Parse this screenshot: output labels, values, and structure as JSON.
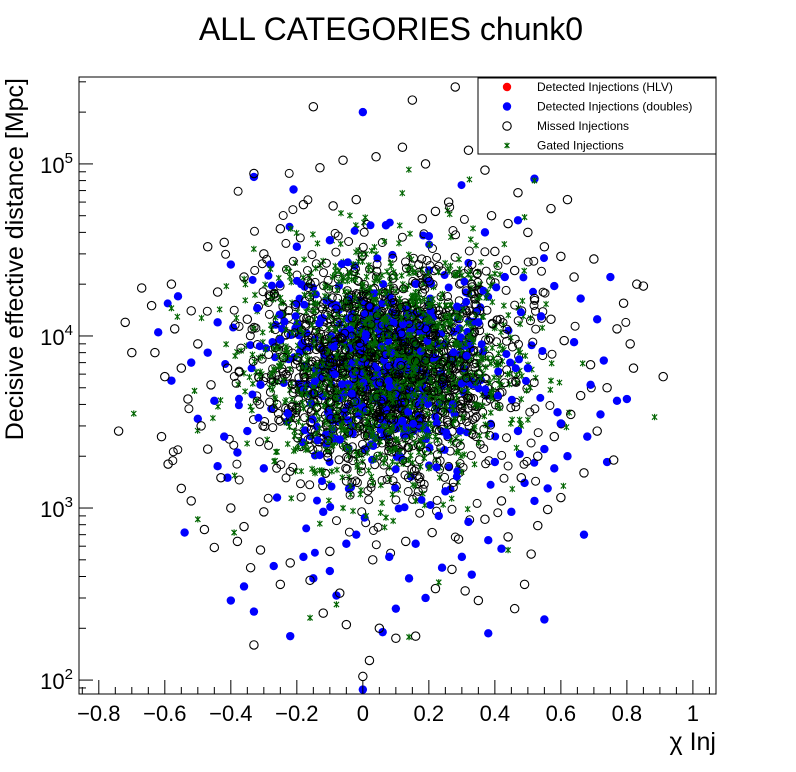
{
  "chart_data": {
    "type": "scatter",
    "title": "ALL CATEGORIES chunk0",
    "xlabel": "χ Inj",
    "ylabel": "Decisive effective distance [Mpc]",
    "xlim": [
      -0.86,
      1.07
    ],
    "ylim": [
      83,
      320000
    ],
    "yscale": "log",
    "grid": false,
    "legend_position": "top-right",
    "x_ticks": [
      -0.8,
      -0.6,
      -0.4,
      -0.2,
      0,
      0.2,
      0.4,
      0.6,
      0.8,
      1
    ],
    "x_tick_labels": [
      "−0.8",
      "−0.6",
      "−0.4",
      "−0.2",
      "0",
      "0.2",
      "0.4",
      "0.6",
      "0.8",
      "1"
    ],
    "y_ticks": [
      {
        "value": 100,
        "base": "10",
        "exp": "2"
      },
      {
        "value": 1000,
        "base": "10",
        "exp": "3"
      },
      {
        "value": 10000,
        "base": "10",
        "exp": "4"
      },
      {
        "value": 100000,
        "base": "10",
        "exp": "5"
      }
    ],
    "legend": [
      {
        "label": "Detected Injections (HLV)",
        "marker": "filled-circle",
        "color": "#ff0000"
      },
      {
        "label": "Detected Injections (doubles)",
        "marker": "filled-circle",
        "color": "#0000ff"
      },
      {
        "label": "Missed Injections",
        "marker": "open-circle",
        "color": "#000000"
      },
      {
        "label": "Gated Injections",
        "marker": "star",
        "color": "#006400"
      }
    ],
    "series": [
      {
        "name": "Detected Injections (doubles)",
        "color": "#0000ff",
        "marker": "filled-circle",
        "points": [
          [
            0.0,
            200000
          ],
          [
            -0.33,
            84000
          ],
          [
            -0.21,
            71000
          ],
          [
            0.52,
            82000
          ],
          [
            -0.56,
            17000
          ],
          [
            -0.47,
            8000
          ],
          [
            -0.52,
            7000
          ],
          [
            -0.58,
            5500
          ],
          [
            -0.45,
            4200
          ],
          [
            -0.5,
            3300
          ],
          [
            -0.42,
            2600
          ],
          [
            -0.38,
            2100
          ],
          [
            -0.44,
            1750
          ],
          [
            -0.41,
            1500
          ],
          [
            -0.54,
            720
          ],
          [
            -0.4,
            290
          ],
          [
            -0.36,
            350
          ],
          [
            -0.33,
            250
          ],
          [
            -0.22,
            180
          ],
          [
            -0.27,
            460
          ],
          [
            -0.18,
            520
          ],
          [
            -0.15,
            390
          ],
          [
            -0.1,
            430
          ],
          [
            -0.08,
            310
          ],
          [
            -0.05,
            620
          ],
          [
            0.0,
            88
          ],
          [
            0.06,
            190
          ],
          [
            0.1,
            260
          ],
          [
            0.14,
            390
          ],
          [
            0.19,
            300
          ],
          [
            0.24,
            450
          ],
          [
            0.3,
            520
          ],
          [
            0.33,
            410
          ],
          [
            0.38,
            650
          ],
          [
            0.42,
            580
          ],
          [
            0.45,
            950
          ],
          [
            0.52,
            1100
          ],
          [
            0.49,
            1400
          ],
          [
            0.55,
            2200
          ],
          [
            0.58,
            1700
          ],
          [
            0.62,
            2000
          ],
          [
            0.68,
            2600
          ],
          [
            0.72,
            3500
          ],
          [
            0.77,
            4200
          ],
          [
            0.69,
            5200
          ],
          [
            0.73,
            7200
          ],
          [
            0.64,
            9200
          ],
          [
            0.71,
            12500
          ],
          [
            0.75,
            22000
          ],
          [
            0.66,
            16500
          ],
          [
            0.6,
            3100
          ],
          [
            0.56,
            1300
          ],
          [
            0.47,
            2800
          ],
          [
            0.5,
            6500
          ],
          [
            0.54,
            13000
          ],
          [
            0.58,
            19500
          ],
          [
            0.43,
            22000
          ],
          [
            0.35,
            12000
          ],
          [
            0.23,
            900
          ],
          [
            0.16,
            620
          ],
          [
            0.08,
            520
          ],
          [
            -0.02,
            700
          ],
          [
            -0.12,
            950
          ],
          [
            -0.26,
            1150
          ],
          [
            -0.3,
            1700
          ],
          [
            -0.35,
            2800
          ],
          [
            -0.31,
            5200
          ],
          [
            -0.25,
            9500
          ],
          [
            -0.32,
            14500
          ],
          [
            -0.28,
            26000
          ],
          [
            0.25,
            1250
          ],
          [
            0.32,
            830
          ],
          [
            0.4,
            1850
          ],
          [
            0.12,
            3200
          ],
          [
            -0.07,
            2500
          ],
          [
            0.55,
            225
          ],
          [
            0.38,
            187
          ],
          [
            0.74,
            1850
          ],
          [
            0.59,
            3600
          ],
          [
            0.47,
            47000
          ],
          [
            0.37,
            40000
          ],
          [
            -0.2,
            33000
          ],
          [
            -0.1,
            36000
          ],
          [
            0.07,
            44000
          ],
          [
            0.2,
            38000
          ],
          [
            -0.44,
            12000
          ],
          [
            -0.62,
            10500
          ],
          [
            -0.4,
            26000
          ],
          [
            0.8,
            4300
          ],
          [
            0.67,
            700
          ]
        ]
      },
      {
        "name": "Missed Injections",
        "color": "#000000",
        "marker": "open-circle",
        "points": [
          [
            0.28,
            280000
          ],
          [
            -0.15,
            215000
          ],
          [
            0.15,
            235000
          ],
          [
            0.32,
            120000
          ],
          [
            0.04,
            110000
          ],
          [
            -0.06,
            105000
          ],
          [
            0.12,
            125000
          ],
          [
            0.19,
            100000
          ],
          [
            0.42,
            122000
          ],
          [
            0.37,
            92000
          ],
          [
            -0.13,
            95000
          ],
          [
            -0.33,
            88000
          ],
          [
            0.62,
            62000
          ],
          [
            0.57,
            55000
          ],
          [
            0.47,
            68000
          ],
          [
            -0.42,
            35000
          ],
          [
            -0.47,
            33000
          ],
          [
            -0.58,
            20000
          ],
          [
            -0.67,
            19000
          ],
          [
            -0.72,
            12000
          ],
          [
            -0.7,
            8000
          ],
          [
            -0.74,
            2800
          ],
          [
            -0.63,
            8000
          ],
          [
            -0.6,
            5800
          ],
          [
            -0.61,
            2600
          ],
          [
            -0.59,
            1800
          ],
          [
            -0.55,
            1300
          ],
          [
            -0.52,
            1100
          ],
          [
            -0.48,
            750
          ],
          [
            -0.45,
            590
          ],
          [
            -0.38,
            640
          ],
          [
            -0.33,
            160
          ],
          [
            -0.34,
            450
          ],
          [
            -0.25,
            360
          ],
          [
            -0.3,
            950
          ],
          [
            -0.12,
            245
          ],
          [
            -0.07,
            320
          ],
          [
            -0.05,
            210
          ],
          [
            0.0,
            105
          ],
          [
            0.02,
            130
          ],
          [
            0.05,
            200
          ],
          [
            0.1,
            175
          ],
          [
            0.16,
            180
          ],
          [
            0.22,
            340
          ],
          [
            0.27,
            440
          ],
          [
            0.31,
            330
          ],
          [
            0.35,
            290
          ],
          [
            0.44,
            680
          ],
          [
            0.49,
            360
          ],
          [
            0.51,
            540
          ],
          [
            0.46,
            260
          ],
          [
            0.56,
            980
          ],
          [
            0.53,
            790
          ],
          [
            0.6,
            1150
          ],
          [
            0.67,
            1600
          ],
          [
            0.76,
            1900
          ],
          [
            0.71,
            2800
          ],
          [
            0.74,
            5000
          ],
          [
            0.82,
            6500
          ],
          [
            0.81,
            9000
          ],
          [
            0.91,
            5800
          ],
          [
            0.85,
            19500
          ],
          [
            0.79,
            15500
          ],
          [
            0.83,
            20000
          ],
          [
            0.77,
            11000
          ],
          [
            0.7,
            28000
          ],
          [
            0.64,
            22000
          ],
          [
            0.55,
            33000
          ],
          [
            0.6,
            29000
          ],
          [
            0.5,
            40000
          ],
          [
            0.44,
            45000
          ],
          [
            0.39,
            50000
          ],
          [
            0.26,
            60000
          ],
          [
            0.22,
            53000
          ],
          [
            0.18,
            48000
          ],
          [
            -0.02,
            62000
          ],
          [
            -0.09,
            57000
          ],
          [
            -0.18,
            58000
          ],
          [
            -0.25,
            42000
          ],
          [
            -0.3,
            30000
          ],
          [
            -0.36,
            22000
          ],
          [
            -0.44,
            18000
          ],
          [
            -0.52,
            14000
          ],
          [
            -0.57,
            11000
          ],
          [
            -0.64,
            15000
          ],
          [
            -0.5,
            9000
          ],
          [
            -0.46,
            5200
          ],
          [
            -0.53,
            4300
          ],
          [
            -0.49,
            3000
          ],
          [
            -0.47,
            2200
          ],
          [
            -0.43,
            1500
          ],
          [
            -0.4,
            1000
          ],
          [
            -0.36,
            780
          ],
          [
            -0.31,
            570
          ],
          [
            -0.22,
            480
          ],
          [
            -0.16,
            380
          ],
          [
            -0.1,
            560
          ],
          [
            0.03,
            500
          ],
          [
            0.13,
            640
          ],
          [
            0.21,
            720
          ],
          [
            0.29,
            660
          ],
          [
            0.37,
            860
          ],
          [
            0.42,
            1100
          ],
          [
            0.48,
            1500
          ],
          [
            0.53,
            2000
          ],
          [
            0.58,
            2600
          ],
          [
            0.63,
            3500
          ],
          [
            0.66,
            4500
          ],
          [
            0.69,
            6800
          ],
          [
            0.61,
            9400
          ],
          [
            0.57,
            12500
          ],
          [
            0.52,
            16500
          ],
          [
            0.46,
            24000
          ],
          [
            0.4,
            31000
          ],
          [
            0.33,
            26000
          ],
          [
            -0.35,
            12500
          ],
          [
            -0.28,
            17000
          ],
          [
            -0.24,
            7500
          ],
          [
            -0.41,
            6500
          ],
          [
            -0.55,
            6500
          ]
        ]
      },
      {
        "name": "Gated Injections",
        "color": "#006400",
        "marker": "star",
        "points": [
          [
            0.0,
            20000
          ],
          [
            0.05,
            18000
          ],
          [
            0.1,
            22000
          ],
          [
            0.15,
            17000
          ],
          [
            0.2,
            15000
          ],
          [
            -0.05,
            16000
          ],
          [
            -0.1,
            19000
          ],
          [
            -0.15,
            14000
          ],
          [
            -0.2,
            12000
          ],
          [
            0.25,
            13000
          ],
          [
            0.3,
            11000
          ],
          [
            0.02,
            9000
          ],
          [
            0.08,
            8000
          ],
          [
            -0.02,
            7000
          ],
          [
            0.04,
            6000
          ],
          [
            0.12,
            5000
          ],
          [
            0.18,
            4200
          ],
          [
            -0.08,
            4800
          ],
          [
            0.0,
            3500
          ],
          [
            0.06,
            3000
          ],
          [
            0.1,
            2500
          ],
          [
            -0.04,
            2200
          ],
          [
            0.14,
            1900
          ],
          [
            0.2,
            1700
          ],
          [
            -0.12,
            1600
          ],
          [
            0.03,
            1400
          ],
          [
            0.09,
            1200
          ],
          [
            0.16,
            1100
          ],
          [
            -0.06,
            1000
          ],
          [
            0.01,
            900
          ],
          [
            0.22,
            2600
          ],
          [
            0.28,
            3300
          ],
          [
            0.34,
            4000
          ],
          [
            -0.18,
            3800
          ],
          [
            -0.24,
            5500
          ],
          [
            -0.26,
            8500
          ],
          [
            0.36,
            7500
          ],
          [
            0.32,
            9800
          ],
          [
            0.26,
            6200
          ],
          [
            -0.14,
            6800
          ],
          [
            0.52,
            80000
          ],
          [
            0.49,
            49000
          ],
          [
            -0.58,
            14500
          ],
          [
            -0.51,
            4800
          ],
          [
            -0.5,
            860
          ],
          [
            -0.39,
            720
          ],
          [
            -0.08,
            275
          ],
          [
            -0.16,
            230
          ],
          [
            0.14,
            178
          ],
          [
            0.23,
            370
          ],
          [
            0.44,
            570
          ],
          [
            0.57,
            5500
          ],
          [
            0.4,
            23000
          ],
          [
            0.07,
            880
          ],
          [
            -0.28,
            24500
          ]
        ]
      }
    ]
  }
}
